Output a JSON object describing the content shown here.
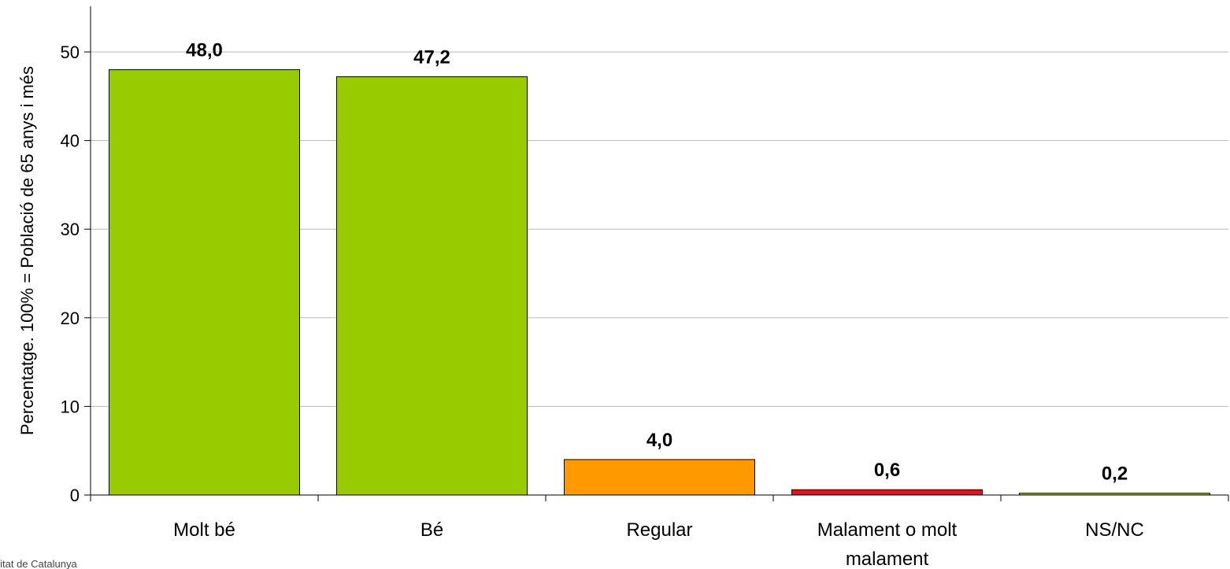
{
  "chart_data": {
    "type": "bar",
    "title": "",
    "xlabel": "",
    "ylabel": "Percentatge. 100% = Població de 65 anys i més",
    "categories": [
      "Molt bé",
      "Bé",
      "Regular",
      "Malament o molt malament",
      "NS/NC"
    ],
    "category_lines": [
      [
        "Molt bé"
      ],
      [
        "Bé"
      ],
      [
        "Regular"
      ],
      [
        "Malament o molt",
        "malament"
      ],
      [
        "NS/NC"
      ]
    ],
    "values": [
      48.0,
      47.2,
      4.0,
      0.6,
      0.2
    ],
    "value_labels": [
      "48,0",
      "47,2",
      "4,0",
      "0,6",
      "0,2"
    ],
    "bar_colors": [
      "#99CC00",
      "#99CC00",
      "#FF9900",
      "#E8101A",
      "#99CC00"
    ],
    "ylim": [
      0,
      55
    ],
    "yticks": [
      0,
      10,
      20,
      30,
      40,
      50
    ],
    "grid": true,
    "legend": "none"
  },
  "source_text": "alitat de Catalunya"
}
